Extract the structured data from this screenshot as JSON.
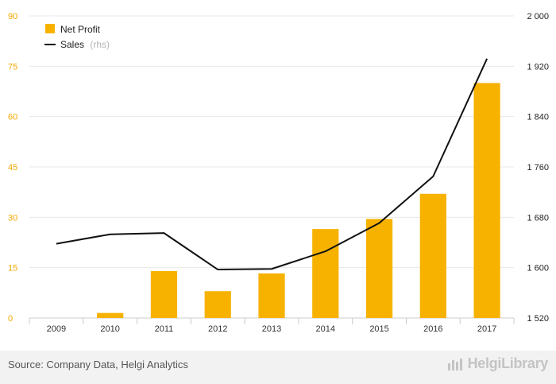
{
  "chart_data": {
    "type": "bar+line",
    "categories": [
      "2009",
      "2010",
      "2011",
      "2012",
      "2013",
      "2014",
      "2015",
      "2016",
      "2017"
    ],
    "series": [
      {
        "name": "Net Profit",
        "type": "bar",
        "axis": "left",
        "color": "#f7b200",
        "values": [
          0,
          1.5,
          14,
          8,
          13.3,
          26.5,
          29.5,
          37,
          70
        ]
      },
      {
        "name": "Sales",
        "type": "line",
        "axis": "right",
        "color": "#111111",
        "values": [
          1638,
          1653,
          1655,
          1597,
          1598,
          1626,
          1671,
          1745,
          1932
        ]
      }
    ],
    "left_axis": {
      "ylim": [
        0,
        90
      ],
      "ticks": [
        "0",
        "15",
        "30",
        "45",
        "60",
        "75",
        "90"
      ],
      "color": "#f0a800"
    },
    "right_axis": {
      "ylim": [
        1520,
        2000
      ],
      "ticks": [
        "1 520",
        "1 600",
        "1 680",
        "1 760",
        "1 840",
        "1 920",
        "2 000"
      ]
    },
    "legend": [
      {
        "label": "Net Profit",
        "suffix": ""
      },
      {
        "label": "Sales",
        "suffix": "(rhs)"
      }
    ],
    "grid": true
  },
  "footer": {
    "source": "Source: Company Data, Helgi Analytics",
    "brand": "HelgiLibrary"
  }
}
